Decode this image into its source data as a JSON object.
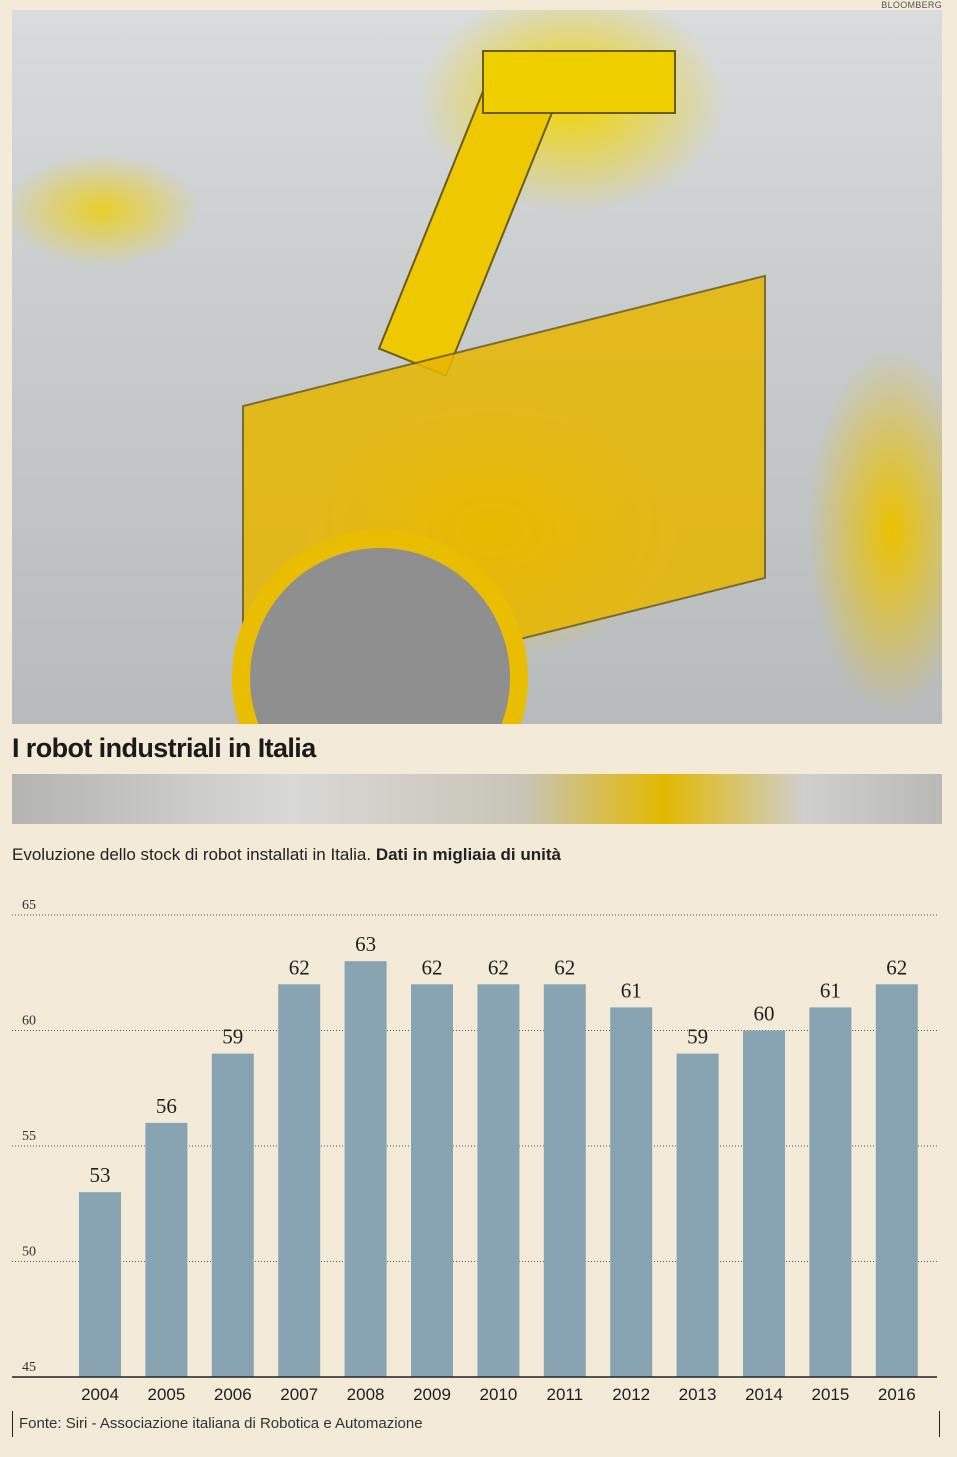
{
  "credit": "BLOOMBERG",
  "title": "I robot industriali in Italia",
  "subtitle_plain": "Evoluzione dello stock di robot installati in Italia.",
  "subtitle_bold": "Dati in migliaia di unità",
  "source": "Fonte: Siri - Associazione italiana di Robotica e Automazione",
  "colors": {
    "bar": "#88a3b2",
    "background": "#f3ead8",
    "grid": "#555555"
  },
  "chart_data": {
    "type": "bar",
    "categories": [
      "2004",
      "2005",
      "2006",
      "2007",
      "2008",
      "2009",
      "2010",
      "2011",
      "2012",
      "2013",
      "2014",
      "2015",
      "2016"
    ],
    "values": [
      53,
      56,
      59,
      62,
      63,
      62,
      62,
      62,
      61,
      59,
      60,
      61,
      62
    ],
    "ylim": [
      45,
      65
    ],
    "yticks": [
      45,
      50,
      55,
      60,
      65
    ],
    "grid": "dotted horizontal",
    "legend": "none",
    "data_labels": true
  }
}
